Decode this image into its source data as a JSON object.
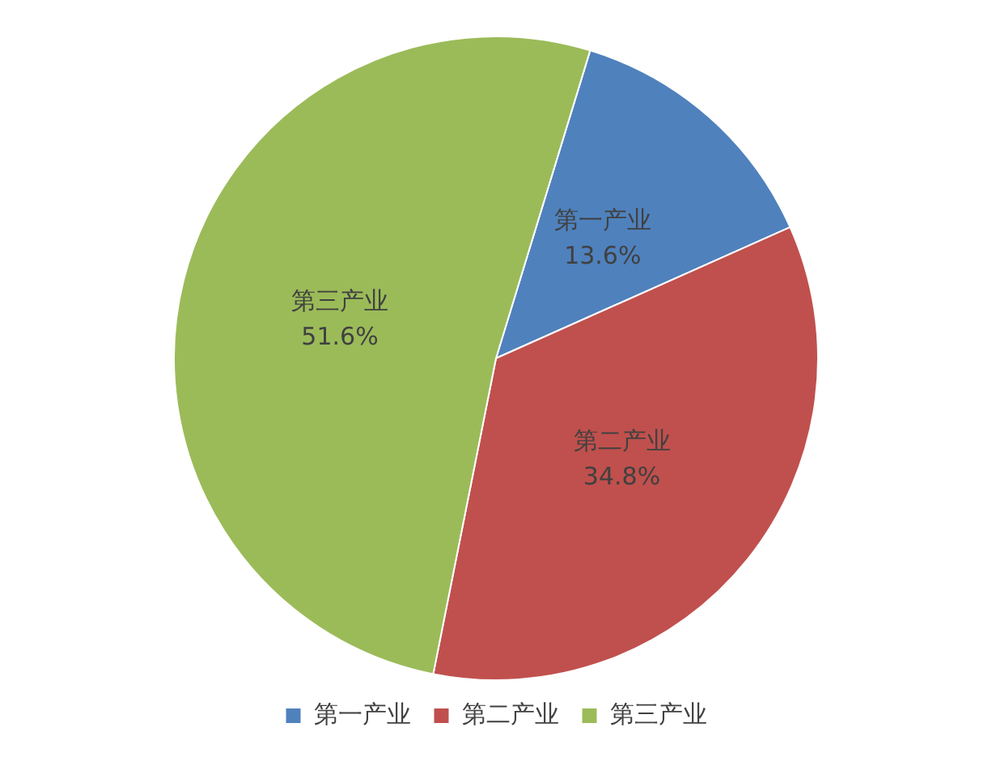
{
  "chart_data": {
    "type": "pie",
    "categories": [
      "第一产业",
      "第二产业",
      "第三产业"
    ],
    "values": [
      13.6,
      34.8,
      51.6
    ],
    "value_labels": [
      "13.6%",
      "34.8%",
      "51.6%"
    ],
    "colors": [
      "#4f81bd",
      "#c0504d",
      "#9bbb59"
    ],
    "legend": "bottom"
  }
}
